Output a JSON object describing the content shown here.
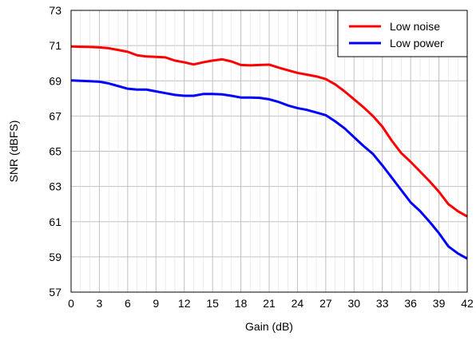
{
  "chart_data": {
    "type": "line",
    "xlabel": "Gain (dB)",
    "ylabel": "SNR (dBFS)",
    "xlim": [
      0,
      42
    ],
    "ylim": [
      57,
      73
    ],
    "xticks": [
      0,
      3,
      6,
      9,
      12,
      15,
      18,
      21,
      24,
      27,
      30,
      33,
      36,
      39,
      42
    ],
    "yticks": [
      57,
      59,
      61,
      63,
      65,
      67,
      69,
      71,
      73
    ],
    "grid": true,
    "legend_position": "top-right",
    "series": [
      {
        "name": "Low noise",
        "color": "#ff0000",
        "x": [
          0,
          1,
          2,
          3,
          4,
          5,
          6,
          7,
          8,
          9,
          10,
          11,
          12,
          13,
          14,
          15,
          16,
          17,
          18,
          19,
          20,
          21,
          22,
          23,
          24,
          25,
          26,
          27,
          28,
          29,
          30,
          31,
          32,
          33,
          34,
          35,
          36,
          37,
          38,
          39,
          40,
          41,
          42
        ],
        "y": [
          70.95,
          70.93,
          70.92,
          70.9,
          70.85,
          70.75,
          70.65,
          70.45,
          70.38,
          70.36,
          70.33,
          70.15,
          70.05,
          69.93,
          70.05,
          70.15,
          70.22,
          70.1,
          69.9,
          69.88,
          69.9,
          69.92,
          69.75,
          69.6,
          69.45,
          69.35,
          69.25,
          69.1,
          68.8,
          68.4,
          67.95,
          67.5,
          67.0,
          66.4,
          65.6,
          64.9,
          64.4,
          63.85,
          63.3,
          62.7,
          62.0,
          61.6,
          61.3
        ]
      },
      {
        "name": "Low power",
        "color": "#0000ff",
        "x": [
          0,
          1,
          2,
          3,
          4,
          5,
          6,
          7,
          8,
          9,
          10,
          11,
          12,
          13,
          14,
          15,
          16,
          17,
          18,
          19,
          20,
          21,
          22,
          23,
          24,
          25,
          26,
          27,
          28,
          29,
          30,
          31,
          32,
          33,
          34,
          35,
          36,
          37,
          38,
          39,
          40,
          41,
          42
        ],
        "y": [
          69.02,
          69.0,
          68.98,
          68.95,
          68.85,
          68.7,
          68.55,
          68.5,
          68.5,
          68.4,
          68.3,
          68.2,
          68.15,
          68.15,
          68.25,
          68.25,
          68.23,
          68.15,
          68.05,
          68.05,
          68.03,
          67.95,
          67.8,
          67.6,
          67.45,
          67.35,
          67.2,
          67.05,
          66.7,
          66.3,
          65.8,
          65.3,
          64.85,
          64.2,
          63.5,
          62.8,
          62.1,
          61.6,
          61.0,
          60.35,
          59.6,
          59.2,
          58.9
        ]
      }
    ]
  }
}
